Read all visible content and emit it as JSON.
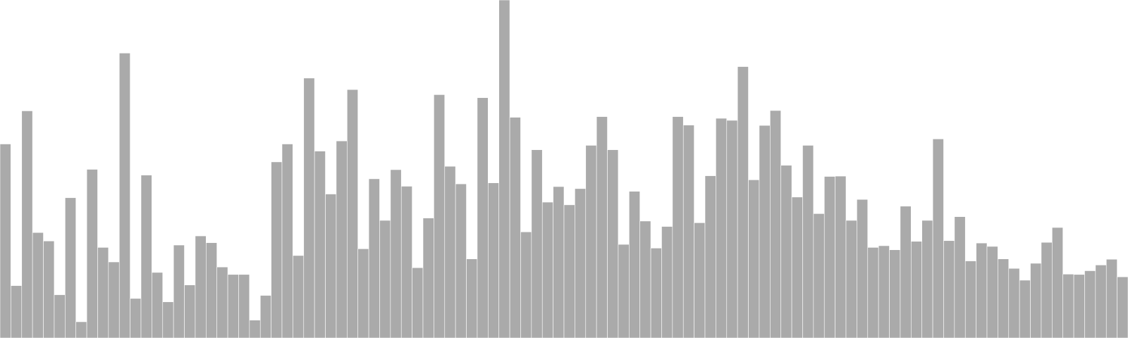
{
  "chart_data": {
    "type": "bar",
    "title": "",
    "xlabel": "",
    "ylabel": "",
    "axes_visible": false,
    "grid": false,
    "legend": "none",
    "bar_color": "#aaaaaa",
    "bar_edge_color": "#ffffff",
    "background_color": "#ffffff",
    "ylim": [
      0,
      100
    ],
    "values": [
      57.4,
      15.5,
      67.2,
      31.2,
      28.7,
      12.8,
      41.5,
      4.8,
      49.9,
      26.8,
      22.5,
      84.3,
      11.7,
      48.2,
      19.4,
      10.7,
      27.5,
      15.7,
      30.2,
      28.2,
      21.0,
      18.8,
      18.8,
      5.3,
      12.6,
      52.1,
      57.4,
      24.4,
      76.9,
      55.3,
      42.6,
      58.3,
      73.5,
      26.4,
      47.1,
      34.8,
      49.8,
      44.9,
      20.8,
      35.5,
      72.0,
      50.8,
      45.6,
      23.4,
      71.1,
      45.9,
      100.0,
      65.3,
      31.4,
      55.7,
      40.2,
      44.8,
      39.4,
      44.2,
      57.0,
      65.5,
      55.7,
      27.7,
      43.4,
      34.6,
      26.6,
      33.0,
      65.5,
      63.0,
      34.1,
      48.0,
      65.0,
      64.4,
      80.3,
      46.8,
      62.9,
      67.3,
      51.1,
      41.7,
      57.0,
      36.8,
      47.8,
      47.9,
      34.8,
      41.0,
      26.8,
      27.3,
      26.1,
      39.0,
      28.6,
      34.8,
      58.9,
      28.8,
      35.9,
      22.8,
      28.1,
      27.1,
      23.4,
      20.6,
      17.1,
      22.1,
      28.3,
      32.7,
      18.9,
      18.8,
      19.9,
      21.6,
      23.3,
      18.1
    ]
  }
}
